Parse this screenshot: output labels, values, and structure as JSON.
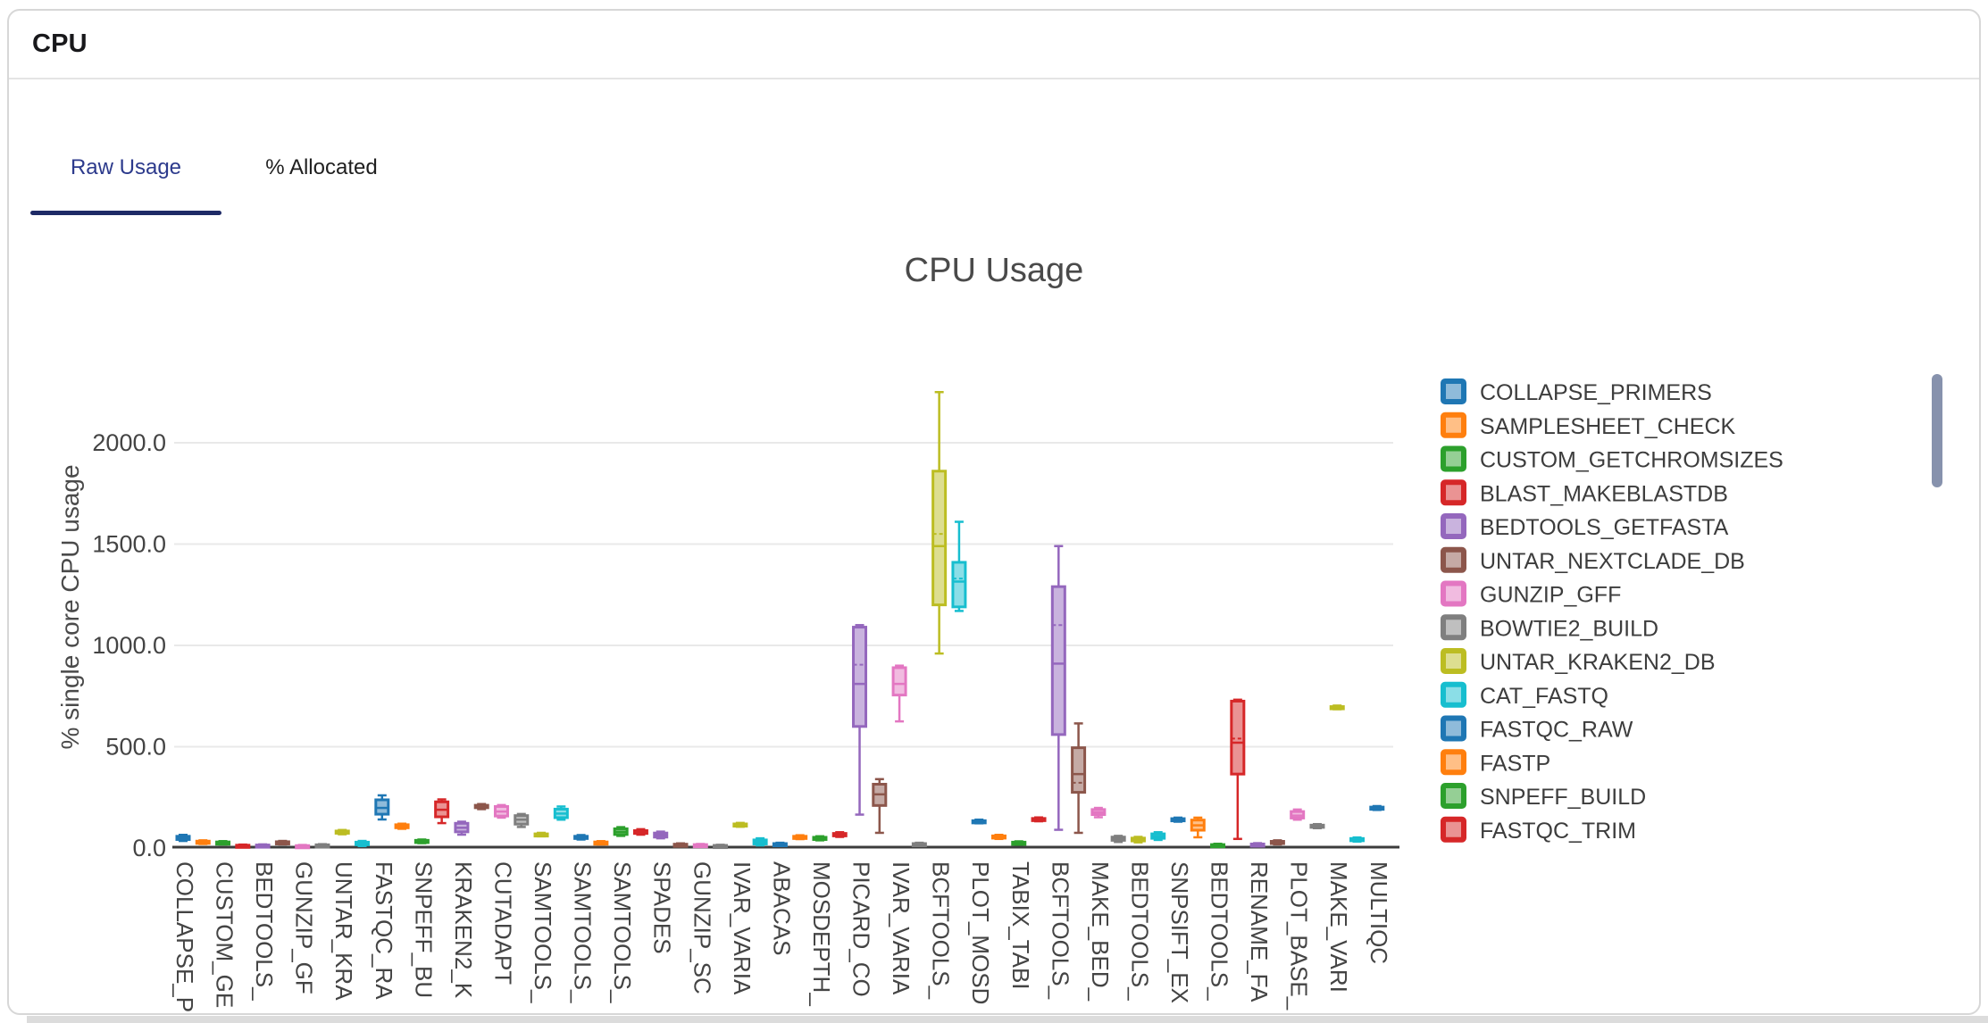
{
  "header": {
    "title": "CPU"
  },
  "tabs": [
    {
      "label": "Raw Usage",
      "active": true
    },
    {
      "label": "% Allocated",
      "active": false
    }
  ],
  "colors": {
    "active_tab_text": "#2c3a8c",
    "active_tab_underline": "#1e2a66",
    "card_border": "#d7d7d7",
    "axis_text": "#444444",
    "title_text": "#4a4a4a",
    "gridline": "#e9e9e9",
    "axis_line": "#3c3c3c",
    "scrollbar_thumb": "#8792ad"
  },
  "chart_data": {
    "type": "box",
    "title": "CPU Usage",
    "ylabel": "% single core CPU usage",
    "xlabel": "",
    "ylim": [
      0,
      2300
    ],
    "y_ticks": [
      "0.0",
      "500.0",
      "1000.0",
      "1500.0",
      "2000.0"
    ],
    "y_tick_values": [
      0,
      500,
      1000,
      1500,
      2000
    ],
    "grid": true,
    "legend_position": "right",
    "legend_scrollable": true,
    "note": "61 box-plot traces; colors cycle through the 10-color palette in trace order; x tick labels are shown for every other trace (31 labels, truncated)",
    "palette": [
      "#1f77b4",
      "#ff7f0e",
      "#2ca02c",
      "#d62728",
      "#9467bd",
      "#8c564b",
      "#e377c2",
      "#7f7f7f",
      "#bcbd22",
      "#17becf"
    ],
    "palette_fill": [
      "#8fbbda",
      "#ffbf86",
      "#95cf95",
      "#ea9393",
      "#c9b3de",
      "#c5aaa5",
      "#f1bbe0",
      "#bfbfbf",
      "#ddde90",
      "#8bdee7"
    ],
    "x_tick_labels": [
      "COLLAPSE_P",
      "CUSTOM_GE",
      "BEDTOOLS_",
      "GUNZIP_GF",
      "UNTAR_KRA",
      "FASTQC_RA",
      "SNPEFF_BU",
      "KRAKEN2_K",
      "CUTADAPT",
      "SAMTOOLS_",
      "SAMTOOLS_",
      "SAMTOOLS_",
      "SPADES",
      "GUNZIP_SC",
      "IVAR_VARIA",
      "ABACAS",
      "MOSDEPTH_",
      "PICARD_CO",
      "IVAR_VARIA",
      "BCFTOOLS_",
      "PLOT_MOSD",
      "TABIX_TABI",
      "BCFTOOLS_",
      "MAKE_BED_",
      "BEDTOOLS_",
      "SNPSIFT_EX",
      "BEDTOOLS_",
      "RENAME_FA",
      "PLOT_BASE_",
      "MAKE_VARI",
      "MULTIQC"
    ],
    "tick_every": 2,
    "series_format": [
      "low",
      "q1",
      "median",
      "q3",
      "high",
      "mean(optional)"
    ],
    "series": [
      [
        35,
        42,
        50,
        58,
        65
      ],
      [
        20,
        26,
        30,
        34,
        38
      ],
      [
        18,
        22,
        26,
        30,
        34
      ],
      [
        5,
        8,
        11,
        14,
        17
      ],
      [
        6,
        9,
        12,
        15,
        18
      ],
      [
        18,
        23,
        27,
        31,
        35
      ],
      [
        4,
        7,
        9,
        12,
        15
      ],
      [
        7,
        10,
        13,
        16,
        19
      ],
      [
        68,
        74,
        79,
        84,
        89
      ],
      [
        10,
        16,
        22,
        29,
        35
      ],
      [
        141,
        167,
        198,
        238,
        260
      ],
      [
        95,
        100,
        108,
        115,
        120
      ],
      [
        24,
        29,
        33,
        38,
        42
      ],
      [
        123,
        154,
        189,
        228,
        240
      ],
      [
        66,
        80,
        100,
        122,
        130
      ],
      [
        192,
        199,
        205,
        211,
        217
      ],
      [
        150,
        158,
        180,
        205,
        212
      ],
      [
        104,
        118,
        140,
        160,
        168
      ],
      [
        58,
        62,
        66,
        70,
        75
      ],
      [
        140,
        150,
        170,
        192,
        205
      ],
      [
        42,
        47,
        53,
        58,
        64
      ],
      [
        18,
        22,
        26,
        30,
        34
      ],
      [
        60,
        67,
        80,
        95,
        103
      ],
      [
        66,
        72,
        79,
        86,
        93
      ],
      [
        48,
        54,
        64,
        74,
        81
      ],
      [
        8,
        12,
        15,
        19,
        23
      ],
      [
        7,
        10,
        13,
        17,
        20
      ],
      [
        5,
        8,
        10,
        13,
        16
      ],
      [
        105,
        110,
        114,
        119,
        124
      ],
      [
        13,
        20,
        30,
        40,
        48
      ],
      [
        10,
        14,
        18,
        22,
        26
      ],
      [
        44,
        48,
        53,
        58,
        63
      ],
      [
        38,
        43,
        48,
        53,
        58
      ],
      [
        55,
        60,
        66,
        72,
        78
      ],
      [
        165,
        600,
        810,
        1090,
        1100,
        905
      ],
      [
        75,
        210,
        265,
        315,
        340
      ],
      [
        625,
        755,
        810,
        890,
        900
      ],
      [
        10,
        14,
        18,
        22,
        26
      ],
      [
        960,
        1200,
        1490,
        1860,
        2250,
        1550
      ],
      [
        1170,
        1190,
        1315,
        1410,
        1610,
        1330
      ],
      [
        122,
        126,
        130,
        135,
        140
      ],
      [
        45,
        50,
        55,
        60,
        65
      ],
      [
        17,
        21,
        25,
        29,
        33
      ],
      [
        132,
        137,
        141,
        146,
        151
      ],
      [
        90,
        560,
        910,
        1290,
        1490,
        1100
      ],
      [
        75,
        275,
        365,
        495,
        615,
        322
      ],
      [
        152,
        165,
        176,
        190,
        198
      ],
      [
        30,
        38,
        46,
        54,
        60
      ],
      [
        28,
        35,
        42,
        49,
        55
      ],
      [
        40,
        48,
        58,
        70,
        78
      ],
      [
        130,
        135,
        140,
        145,
        150
      ],
      [
        53,
        88,
        112,
        138,
        150
      ],
      [
        6,
        10,
        13,
        17,
        21
      ],
      [
        45,
        365,
        520,
        725,
        732,
        540
      ],
      [
        8,
        12,
        16,
        20,
        24
      ],
      [
        18,
        23,
        28,
        33,
        38
      ],
      [
        140,
        148,
        160,
        180,
        190
      ],
      [
        98,
        103,
        108,
        113,
        118
      ],
      [
        685,
        690,
        694,
        698,
        703
      ],
      [
        32,
        37,
        42,
        47,
        52
      ],
      [
        188,
        193,
        197,
        202,
        207
      ]
    ],
    "legend_entries": [
      "COLLAPSE_PRIMERS",
      "SAMPLESHEET_CHECK",
      "CUSTOM_GETCHROMSIZES",
      "BLAST_MAKEBLASTDB",
      "BEDTOOLS_GETFASTA",
      "UNTAR_NEXTCLADE_DB",
      "GUNZIP_GFF",
      "BOWTIE2_BUILD",
      "UNTAR_KRAKEN2_DB",
      "CAT_FASTQ",
      "FASTQC_RAW",
      "FASTP",
      "SNPEFF_BUILD",
      "FASTQC_TRIM"
    ]
  }
}
